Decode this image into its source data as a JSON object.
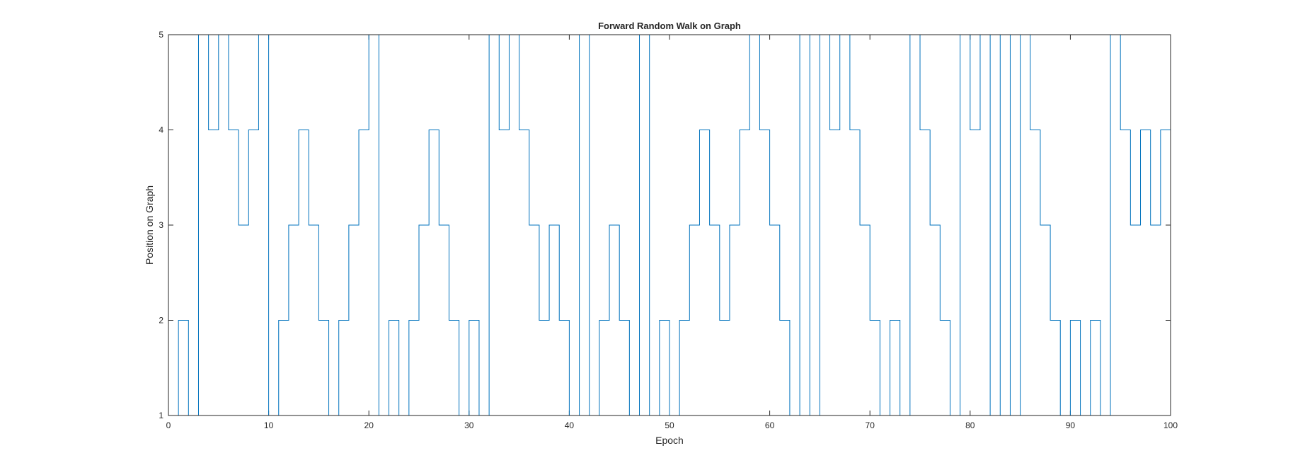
{
  "chart_data": {
    "type": "line",
    "step": true,
    "title": "Forward Random Walk on Graph",
    "xlabel": "Epoch",
    "ylabel": "Position on Graph",
    "xlim": [
      0,
      100
    ],
    "ylim": [
      1,
      5
    ],
    "xticks": [
      0,
      10,
      20,
      30,
      40,
      50,
      60,
      70,
      80,
      90,
      100
    ],
    "yticks": [
      1,
      2,
      3,
      4,
      5
    ],
    "grid": false,
    "line_color": "#0072bd",
    "series": [
      {
        "x": [
          0,
          1,
          2,
          3,
          4,
          5,
          6,
          7,
          8,
          9,
          10,
          11,
          12,
          13,
          14,
          15,
          16,
          17,
          18,
          19,
          20,
          21,
          22,
          23,
          24,
          25,
          26,
          27,
          28,
          29,
          30,
          31,
          32,
          33,
          34,
          35,
          36,
          37,
          38,
          39,
          40,
          41,
          42,
          43,
          44,
          45,
          46,
          47,
          48,
          49,
          50,
          51,
          52,
          53,
          54,
          55,
          56,
          57,
          58,
          59,
          60,
          61,
          62,
          63,
          64,
          65,
          66,
          67,
          68,
          69,
          70,
          71,
          72,
          73,
          74,
          75,
          76,
          77,
          78,
          79,
          80,
          81,
          82,
          83,
          84,
          85,
          86,
          87,
          88,
          89,
          90,
          91,
          92,
          93,
          94,
          95,
          96,
          97,
          98,
          99,
          100
        ],
        "y": [
          1,
          2,
          1,
          5,
          4,
          5,
          4,
          3,
          4,
          5,
          1,
          2,
          3,
          4,
          3,
          2,
          1,
          2,
          3,
          4,
          5,
          1,
          2,
          1,
          2,
          3,
          4,
          3,
          2,
          1,
          2,
          1,
          5,
          4,
          5,
          4,
          3,
          2,
          3,
          2,
          1,
          5,
          1,
          2,
          3,
          2,
          1,
          5,
          1,
          2,
          1,
          2,
          3,
          4,
          3,
          2,
          3,
          4,
          5,
          4,
          3,
          2,
          1,
          5,
          1,
          5,
          4,
          5,
          4,
          3,
          2,
          1,
          2,
          1,
          5,
          4,
          3,
          2,
          1,
          5,
          4,
          5,
          1,
          5,
          1,
          5,
          4,
          3,
          2,
          1,
          2,
          1,
          2,
          1,
          5,
          4,
          3,
          4,
          3,
          4,
          3
        ]
      }
    ]
  }
}
